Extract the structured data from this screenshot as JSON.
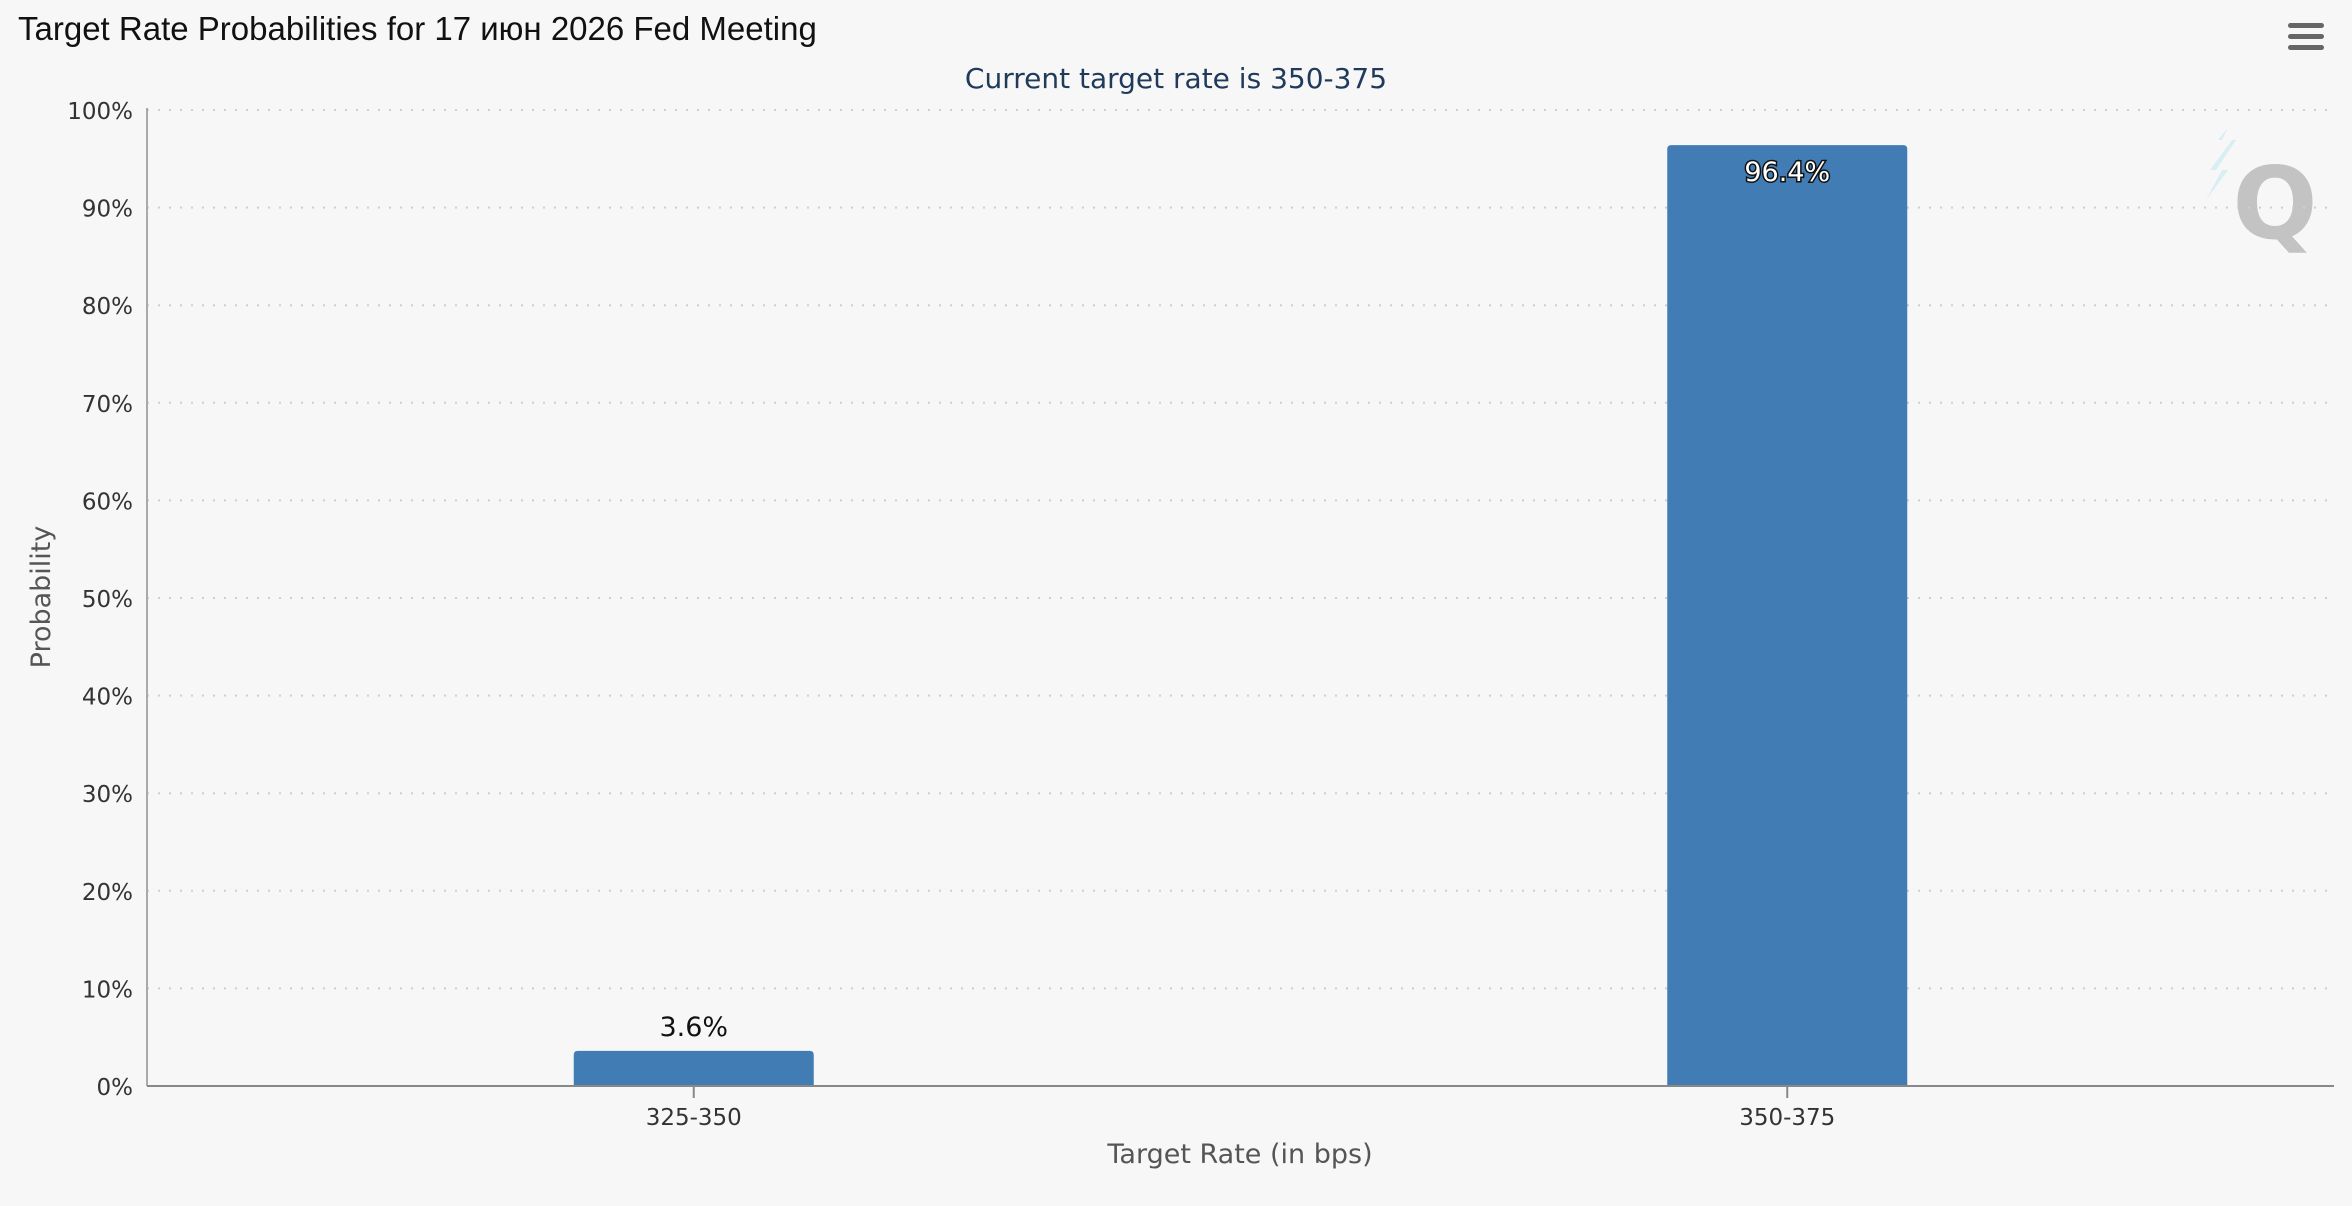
{
  "page": {
    "title": "Target Rate Probabilities for 17 июн 2026 Fed Meeting",
    "menu_icon": "hamburger-menu-icon",
    "watermark_icon": "q-logo-icon"
  },
  "chart_data": {
    "type": "bar",
    "title": "Target Rate Probabilities for 17 июн 2026 Fed Meeting",
    "subtitle": "Current target rate is 350-375",
    "xlabel": "Target Rate (in bps)",
    "ylabel": "Probability",
    "categories": [
      "325-350",
      "350-375"
    ],
    "values": [
      3.6,
      96.4
    ],
    "data_labels": [
      "3.6%",
      "96.4%"
    ],
    "ylim": [
      0,
      100
    ],
    "yticks": [
      0,
      10,
      20,
      30,
      40,
      50,
      60,
      70,
      80,
      90,
      100
    ],
    "ytick_labels": [
      "0%",
      "10%",
      "20%",
      "30%",
      "40%",
      "50%",
      "60%",
      "70%",
      "80%",
      "90%",
      "100%"
    ],
    "grid": true,
    "legend": "none",
    "colors": {
      "bar": "#417db4",
      "subtitle": "#1f3a5a",
      "axis_text": "#333333",
      "axis_title": "#555555",
      "grid": "#cfcfcf",
      "baseline": "#888888"
    }
  }
}
